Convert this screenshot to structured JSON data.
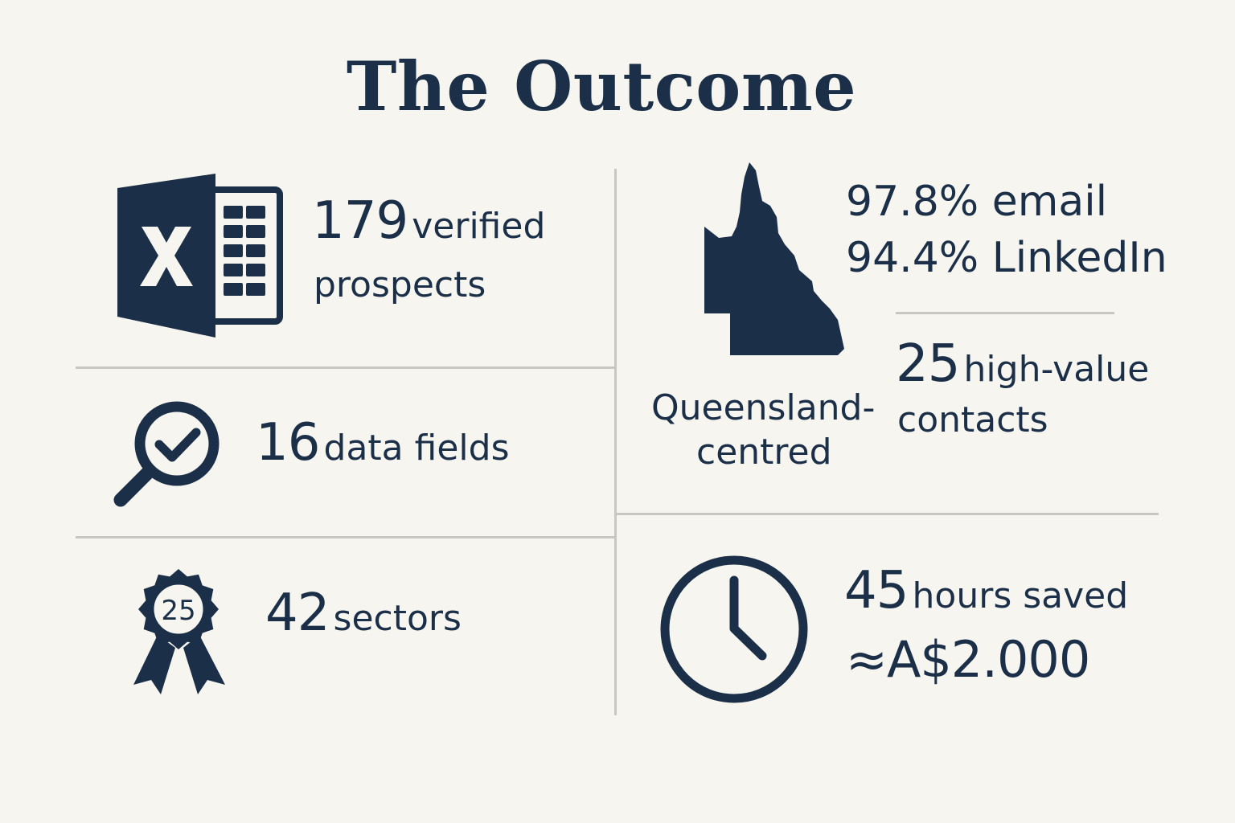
{
  "title": "The Outcome",
  "stats": {
    "prospects": {
      "value": "179",
      "label_line1": "verified",
      "label_line2": "prospects",
      "icon": "spreadsheet-icon"
    },
    "fields": {
      "value": "16",
      "label": "data fields",
      "icon": "magnifier-check-icon"
    },
    "sectors": {
      "value": "42",
      "label": "sectors",
      "icon": "award-ribbon-icon",
      "badge_text": "25"
    },
    "coverage": {
      "email": "97.8% email",
      "linkedin": "94.4% LinkedIn"
    },
    "region": {
      "line1": "Queensland-",
      "line2": "centred",
      "icon": "queensland-map-icon"
    },
    "contacts": {
      "value": "25",
      "label_line1": "high-value",
      "label_line2": "contacts"
    },
    "time": {
      "value": "45",
      "label": "hours saved",
      "money": "≈A$2.000",
      "icon": "clock-icon"
    }
  },
  "colors": {
    "ink": "#1b3048",
    "background": "#f7f5f0",
    "rule": "#c9c7c2"
  }
}
